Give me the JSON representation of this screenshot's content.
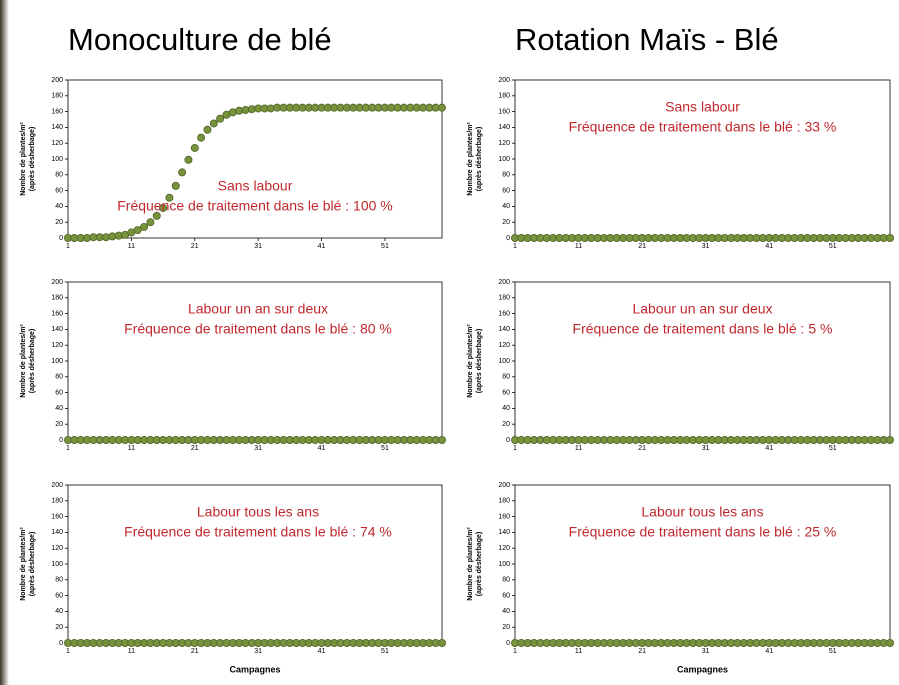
{
  "headings": [
    "Monoculture de blé",
    "Rotation Maïs - Blé"
  ],
  "chart_data": [
    {
      "type": "scatter",
      "color": "#77933c",
      "annotation": [
        "Sans labour",
        "Fréquence de traitement dans le blé : 100 %"
      ],
      "ylabel": [
        "Nombre de plantes/m²",
        "(après désherbage)"
      ],
      "x": [
        1,
        2,
        3,
        4,
        5,
        6,
        7,
        8,
        9,
        10,
        11,
        12,
        13,
        14,
        15,
        16,
        17,
        18,
        19,
        20,
        21,
        22,
        23,
        24,
        25,
        26,
        27,
        28,
        29,
        30,
        31,
        32,
        33,
        34,
        35,
        36,
        37,
        38,
        39,
        40,
        41,
        42,
        43,
        44,
        45,
        46,
        47,
        48,
        49,
        50,
        51,
        52,
        53,
        54,
        55,
        56,
        57,
        58,
        59,
        60
      ],
      "values": [
        0,
        0,
        0,
        0,
        1,
        1,
        1,
        2,
        3,
        4,
        7,
        10,
        14,
        20,
        28,
        38,
        51,
        66,
        83,
        99,
        114,
        127,
        137,
        145,
        151,
        156,
        159,
        161,
        162,
        163,
        164,
        164,
        164,
        165,
        165,
        165,
        165,
        165,
        165,
        165,
        165,
        165,
        165,
        165,
        165,
        165,
        165,
        165,
        165,
        165,
        165,
        165,
        165,
        165,
        165,
        165,
        165,
        165,
        165,
        165
      ],
      "xlim": [
        1,
        60
      ],
      "xticks": [
        1,
        11,
        21,
        31,
        41,
        51
      ],
      "ylim": [
        0,
        200
      ],
      "yticks": [
        0,
        20,
        40,
        60,
        80,
        100,
        120,
        140,
        160,
        180,
        200
      ]
    },
    {
      "type": "scatter",
      "color": "#77933c",
      "annotation": [
        "Sans labour",
        "Fréquence de traitement dans le blé : 33 %"
      ],
      "ylabel": [
        "Nombre de plantes/m²",
        "(après désherbage)"
      ],
      "x": [
        1,
        2,
        3,
        4,
        5,
        6,
        7,
        8,
        9,
        10,
        11,
        12,
        13,
        14,
        15,
        16,
        17,
        18,
        19,
        20,
        21,
        22,
        23,
        24,
        25,
        26,
        27,
        28,
        29,
        30,
        31,
        32,
        33,
        34,
        35,
        36,
        37,
        38,
        39,
        40,
        41,
        42,
        43,
        44,
        45,
        46,
        47,
        48,
        49,
        50,
        51,
        52,
        53,
        54,
        55,
        56,
        57,
        58,
        59,
        60
      ],
      "values": [
        0,
        0,
        0,
        0,
        0,
        0,
        0,
        0,
        0,
        0,
        0,
        0,
        0,
        0,
        0,
        0,
        0,
        0,
        0,
        0,
        0,
        0,
        0,
        0,
        0,
        0,
        0,
        0,
        0,
        0,
        0,
        0,
        0,
        0,
        0,
        0,
        0,
        0,
        0,
        0,
        0,
        0,
        0,
        0,
        0,
        0,
        0,
        0,
        0,
        0,
        0,
        0,
        0,
        0,
        0,
        0,
        0,
        0,
        0,
        0
      ],
      "xlim": [
        1,
        60
      ],
      "xticks": [
        1,
        11,
        21,
        31,
        41,
        51
      ],
      "ylim": [
        0,
        200
      ],
      "yticks": [
        0,
        20,
        40,
        60,
        80,
        100,
        120,
        140,
        160,
        180,
        200
      ]
    },
    {
      "type": "scatter",
      "color": "#77933c",
      "annotation": [
        "Labour un an sur deux",
        "Fréquence de traitement dans le blé : 80 %"
      ],
      "ylabel": [
        "Nombre de plantes/m²",
        "(après désherbage)"
      ],
      "x": [
        1,
        2,
        3,
        4,
        5,
        6,
        7,
        8,
        9,
        10,
        11,
        12,
        13,
        14,
        15,
        16,
        17,
        18,
        19,
        20,
        21,
        22,
        23,
        24,
        25,
        26,
        27,
        28,
        29,
        30,
        31,
        32,
        33,
        34,
        35,
        36,
        37,
        38,
        39,
        40,
        41,
        42,
        43,
        44,
        45,
        46,
        47,
        48,
        49,
        50,
        51,
        52,
        53,
        54,
        55,
        56,
        57,
        58,
        59,
        60
      ],
      "values": [
        0,
        0,
        0,
        0,
        0,
        0,
        0,
        0,
        0,
        0,
        0,
        0,
        0,
        0,
        0,
        0,
        0,
        0,
        0,
        0,
        0,
        0,
        0,
        0,
        0,
        0,
        0,
        0,
        0,
        0,
        0,
        0,
        0,
        0,
        0,
        0,
        0,
        0,
        0,
        0,
        0,
        0,
        0,
        0,
        0,
        0,
        0,
        0,
        0,
        0,
        0,
        0,
        0,
        0,
        0,
        0,
        0,
        0,
        0,
        0
      ],
      "xlim": [
        1,
        60
      ],
      "xticks": [
        1,
        11,
        21,
        31,
        41,
        51
      ],
      "ylim": [
        0,
        200
      ],
      "yticks": [
        0,
        20,
        40,
        60,
        80,
        100,
        120,
        140,
        160,
        180,
        200
      ]
    },
    {
      "type": "scatter",
      "color": "#77933c",
      "annotation": [
        "Labour un an sur deux",
        "Fréquence de traitement dans le blé : 5 %"
      ],
      "ylabel": [
        "Nombre de plantes/m²",
        "(après désherbage)"
      ],
      "x": [
        1,
        2,
        3,
        4,
        5,
        6,
        7,
        8,
        9,
        10,
        11,
        12,
        13,
        14,
        15,
        16,
        17,
        18,
        19,
        20,
        21,
        22,
        23,
        24,
        25,
        26,
        27,
        28,
        29,
        30,
        31,
        32,
        33,
        34,
        35,
        36,
        37,
        38,
        39,
        40,
        41,
        42,
        43,
        44,
        45,
        46,
        47,
        48,
        49,
        50,
        51,
        52,
        53,
        54,
        55,
        56,
        57,
        58,
        59,
        60
      ],
      "values": [
        0,
        0,
        0,
        0,
        0,
        0,
        0,
        0,
        0,
        0,
        0,
        0,
        0,
        0,
        0,
        0,
        0,
        0,
        0,
        0,
        0,
        0,
        0,
        0,
        0,
        0,
        0,
        0,
        0,
        0,
        0,
        0,
        0,
        0,
        0,
        0,
        0,
        0,
        0,
        0,
        0,
        0,
        0,
        0,
        0,
        0,
        0,
        0,
        0,
        0,
        0,
        0,
        0,
        0,
        0,
        0,
        0,
        0,
        0,
        0
      ],
      "xlim": [
        1,
        60
      ],
      "xticks": [
        1,
        11,
        21,
        31,
        41,
        51
      ],
      "ylim": [
        0,
        200
      ],
      "yticks": [
        0,
        20,
        40,
        60,
        80,
        100,
        120,
        140,
        160,
        180,
        200
      ]
    },
    {
      "type": "scatter",
      "color": "#77933c",
      "annotation": [
        "Labour tous les ans",
        "Fréquence de traitement dans le blé : 74 %"
      ],
      "ylabel": [
        "Nombre de plantes/m²",
        "(après désherbage)"
      ],
      "xlabel": "Campagnes",
      "x": [
        1,
        2,
        3,
        4,
        5,
        6,
        7,
        8,
        9,
        10,
        11,
        12,
        13,
        14,
        15,
        16,
        17,
        18,
        19,
        20,
        21,
        22,
        23,
        24,
        25,
        26,
        27,
        28,
        29,
        30,
        31,
        32,
        33,
        34,
        35,
        36,
        37,
        38,
        39,
        40,
        41,
        42,
        43,
        44,
        45,
        46,
        47,
        48,
        49,
        50,
        51,
        52,
        53,
        54,
        55,
        56,
        57,
        58,
        59,
        60
      ],
      "values": [
        0,
        0,
        0,
        0,
        0,
        0,
        0,
        0,
        0,
        0,
        0,
        0,
        0,
        0,
        0,
        0,
        0,
        0,
        0,
        0,
        0,
        0,
        0,
        0,
        0,
        0,
        0,
        0,
        0,
        0,
        0,
        0,
        0,
        0,
        0,
        0,
        0,
        0,
        0,
        0,
        0,
        0,
        0,
        0,
        0,
        0,
        0,
        0,
        0,
        0,
        0,
        0,
        0,
        0,
        0,
        0,
        0,
        0,
        0,
        0
      ],
      "xlim": [
        1,
        60
      ],
      "xticks": [
        1,
        11,
        21,
        31,
        41,
        51
      ],
      "ylim": [
        0,
        200
      ],
      "yticks": [
        0,
        20,
        40,
        60,
        80,
        100,
        120,
        140,
        160,
        180,
        200
      ]
    },
    {
      "type": "scatter",
      "color": "#77933c",
      "annotation": [
        "Labour tous les ans",
        "Fréquence de traitement dans le blé : 25 %"
      ],
      "ylabel": [
        "Nombre de plantes/m²",
        "(après désherbage)"
      ],
      "xlabel": "Campagnes",
      "x": [
        1,
        2,
        3,
        4,
        5,
        6,
        7,
        8,
        9,
        10,
        11,
        12,
        13,
        14,
        15,
        16,
        17,
        18,
        19,
        20,
        21,
        22,
        23,
        24,
        25,
        26,
        27,
        28,
        29,
        30,
        31,
        32,
        33,
        34,
        35,
        36,
        37,
        38,
        39,
        40,
        41,
        42,
        43,
        44,
        45,
        46,
        47,
        48,
        49,
        50,
        51,
        52,
        53,
        54,
        55,
        56,
        57,
        58,
        59,
        60
      ],
      "values": [
        0,
        0,
        0,
        0,
        0,
        0,
        0,
        0,
        0,
        0,
        0,
        0,
        0,
        0,
        0,
        0,
        0,
        0,
        0,
        0,
        0,
        0,
        0,
        0,
        0,
        0,
        0,
        0,
        0,
        0,
        0,
        0,
        0,
        0,
        0,
        0,
        0,
        0,
        0,
        0,
        0,
        0,
        0,
        0,
        0,
        0,
        0,
        0,
        0,
        0,
        0,
        0,
        0,
        0,
        0,
        0,
        0,
        0,
        0,
        0
      ],
      "xlim": [
        1,
        60
      ],
      "xticks": [
        1,
        11,
        21,
        31,
        41,
        51
      ],
      "ylim": [
        0,
        200
      ],
      "yticks": [
        0,
        20,
        40,
        60,
        80,
        100,
        120,
        140,
        160,
        180,
        200
      ]
    }
  ]
}
